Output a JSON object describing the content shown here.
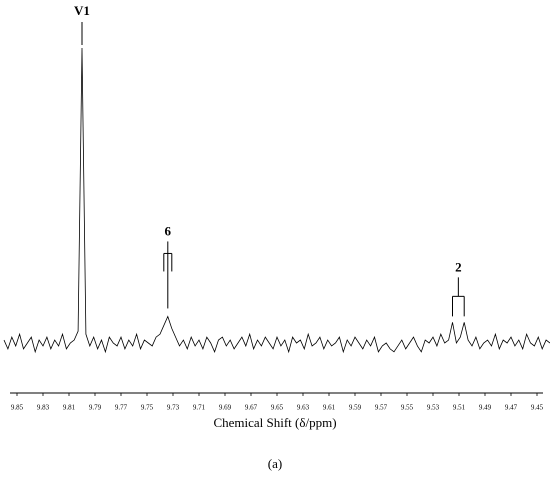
{
  "chart_data": {
    "type": "line",
    "x_label": "Chemical Shift (δ/ppm)",
    "caption": "(a)",
    "xlim": [
      9.86,
      9.44
    ],
    "ylim": [
      -10,
      100
    ],
    "xticks": [
      9.85,
      9.83,
      9.81,
      9.79,
      9.77,
      9.75,
      9.73,
      9.71,
      9.69,
      9.67,
      9.65,
      9.63,
      9.61,
      9.59,
      9.57,
      9.55,
      9.53,
      9.51,
      9.49,
      9.47,
      9.45
    ],
    "color": "#000000",
    "x": [
      9.86,
      9.857,
      9.854,
      9.851,
      9.848,
      9.845,
      9.842,
      9.839,
      9.836,
      9.833,
      9.83,
      9.827,
      9.824,
      9.821,
      9.818,
      9.815,
      9.812,
      9.809,
      9.806,
      9.803,
      9.8,
      9.797,
      9.794,
      9.791,
      9.788,
      9.785,
      9.782,
      9.779,
      9.776,
      9.773,
      9.77,
      9.767,
      9.764,
      9.761,
      9.758,
      9.755,
      9.752,
      9.749,
      9.746,
      9.743,
      9.74,
      9.737,
      9.734,
      9.731,
      9.728,
      9.725,
      9.722,
      9.719,
      9.716,
      9.713,
      9.71,
      9.707,
      9.704,
      9.701,
      9.698,
      9.695,
      9.692,
      9.689,
      9.686,
      9.683,
      9.68,
      9.677,
      9.674,
      9.671,
      9.668,
      9.665,
      9.662,
      9.659,
      9.656,
      9.653,
      9.65,
      9.647,
      9.644,
      9.641,
      9.638,
      9.635,
      9.632,
      9.629,
      9.626,
      9.623,
      9.62,
      9.617,
      9.614,
      9.611,
      9.608,
      9.605,
      9.602,
      9.599,
      9.596,
      9.593,
      9.59,
      9.587,
      9.584,
      9.581,
      9.578,
      9.575,
      9.572,
      9.569,
      9.566,
      9.563,
      9.56,
      9.557,
      9.554,
      9.551,
      9.548,
      9.545,
      9.542,
      9.539,
      9.536,
      9.533,
      9.53,
      9.527,
      9.524,
      9.521,
      9.518,
      9.515,
      9.512,
      9.509,
      9.506,
      9.503,
      9.5,
      9.497,
      9.494,
      9.491,
      9.488,
      9.485,
      9.482,
      9.479,
      9.476,
      9.473,
      9.47,
      9.467,
      9.464,
      9.461,
      9.458,
      9.455,
      9.452,
      9.449,
      9.446,
      9.443,
      9.44
    ],
    "values": [
      1,
      -2,
      2,
      -1,
      3,
      -2,
      0,
      2,
      -3,
      1,
      -1,
      2,
      -2,
      1,
      -1,
      3,
      -2,
      0,
      1,
      4,
      100,
      3,
      -1,
      2,
      -2,
      1,
      -3,
      2,
      0,
      -1,
      2,
      -2,
      1,
      -1,
      3,
      -2,
      1,
      0,
      -1,
      2,
      3,
      6,
      9,
      5,
      2,
      -1,
      1,
      -2,
      2,
      -1,
      1,
      -2,
      2,
      0,
      -3,
      1,
      2,
      -1,
      1,
      -2,
      0,
      2,
      -1,
      3,
      -2,
      1,
      -1,
      2,
      0,
      -2,
      2,
      -1,
      1,
      -3,
      2,
      0,
      1,
      -2,
      3,
      -1,
      0,
      2,
      -2,
      1,
      -1,
      0,
      2,
      -3,
      1,
      -1,
      2,
      0,
      -2,
      1,
      -1,
      2,
      -3,
      -1,
      0,
      -2,
      -3,
      -1,
      1,
      -2,
      0,
      2,
      -1,
      -3,
      1,
      0,
      2,
      -1,
      3,
      0,
      1,
      7,
      0,
      2,
      7,
      1,
      -1,
      2,
      -2,
      0,
      1,
      -1,
      3,
      -2,
      1,
      0,
      2,
      -1,
      1,
      -2,
      3,
      0,
      -1,
      2,
      -2,
      1,
      0
    ],
    "annotations": [
      {
        "label": "V1",
        "x": [
          9.8
        ]
      },
      {
        "label": "6",
        "x": [
          9.734
        ]
      },
      {
        "label": "2",
        "x": [
          9.515,
          9.506
        ]
      }
    ]
  }
}
